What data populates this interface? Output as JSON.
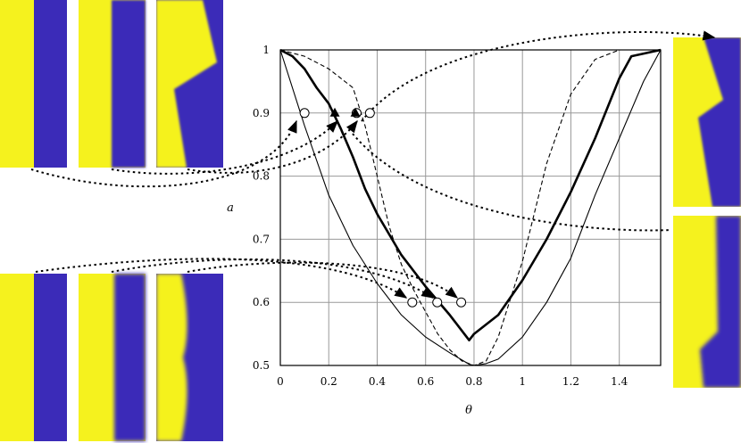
{
  "chart_data": {
    "type": "line",
    "xlabel": "θ",
    "ylabel": "a",
    "xlim": [
      0,
      1.5708
    ],
    "ylim": [
      0.5,
      1.0
    ],
    "grid": true,
    "x_ticks": [
      "0",
      "0.2",
      "0.4",
      "0.6",
      "0.8",
      "1",
      "1.2",
      "1.4"
    ],
    "y_ticks": [
      "0.5",
      "0.6",
      "0.7",
      "0.8",
      "0.9",
      "1"
    ],
    "series": [
      {
        "style": "thin-solid",
        "color": "#000000",
        "points": [
          [
            0,
            1
          ],
          [
            0.1,
            0.88
          ],
          [
            0.2,
            0.77
          ],
          [
            0.3,
            0.69
          ],
          [
            0.4,
            0.63
          ],
          [
            0.5,
            0.58
          ],
          [
            0.6,
            0.545
          ],
          [
            0.7,
            0.52
          ],
          [
            0.78,
            0.502
          ],
          [
            0.8,
            0.5
          ],
          [
            0.85,
            0.503
          ],
          [
            0.9,
            0.51
          ],
          [
            1.0,
            0.545
          ],
          [
            1.1,
            0.6
          ],
          [
            1.2,
            0.67
          ],
          [
            1.3,
            0.77
          ],
          [
            1.4,
            0.86
          ],
          [
            1.5,
            0.95
          ],
          [
            1.5708,
            1
          ]
        ]
      },
      {
        "style": "dashed",
        "color": "#000000",
        "points": [
          [
            0,
            1
          ],
          [
            0.1,
            0.99
          ],
          [
            0.2,
            0.97
          ],
          [
            0.3,
            0.94
          ],
          [
            0.35,
            0.88
          ],
          [
            0.4,
            0.8
          ],
          [
            0.45,
            0.72
          ],
          [
            0.5,
            0.66
          ],
          [
            0.55,
            0.62
          ],
          [
            0.6,
            0.585
          ],
          [
            0.65,
            0.55
          ],
          [
            0.7,
            0.525
          ],
          [
            0.75,
            0.507
          ],
          [
            0.8,
            0.5
          ],
          [
            0.85,
            0.507
          ],
          [
            0.9,
            0.545
          ],
          [
            1.0,
            0.665
          ],
          [
            1.1,
            0.82
          ],
          [
            1.2,
            0.93
          ],
          [
            1.3,
            0.985
          ],
          [
            1.4,
            1.0
          ],
          [
            1.5708,
            1
          ]
        ]
      },
      {
        "style": "thick-solid",
        "color": "#000000",
        "points": [
          [
            0,
            1
          ],
          [
            0.05,
            0.99
          ],
          [
            0.1,
            0.97
          ],
          [
            0.15,
            0.94
          ],
          [
            0.2,
            0.915
          ],
          [
            0.25,
            0.875
          ],
          [
            0.3,
            0.83
          ],
          [
            0.35,
            0.78
          ],
          [
            0.4,
            0.74
          ],
          [
            0.5,
            0.675
          ],
          [
            0.6,
            0.625
          ],
          [
            0.7,
            0.58
          ],
          [
            0.78,
            0.54
          ],
          [
            0.8,
            0.55
          ],
          [
            0.9,
            0.58
          ],
          [
            1.0,
            0.635
          ],
          [
            1.1,
            0.7
          ],
          [
            1.2,
            0.775
          ],
          [
            1.3,
            0.86
          ],
          [
            1.4,
            0.955
          ],
          [
            1.45,
            0.99
          ],
          [
            1.5708,
            1
          ]
        ]
      }
    ],
    "markers": [
      {
        "shape": "circle",
        "x": 0.1,
        "y": 0.9
      },
      {
        "shape": "circle",
        "x": 0.315,
        "y": 0.9
      },
      {
        "shape": "circle",
        "x": 0.37,
        "y": 0.9
      },
      {
        "shape": "triangle",
        "x": 0.225,
        "y": 0.9
      },
      {
        "shape": "triangle",
        "x": 0.31,
        "y": 0.9
      },
      {
        "shape": "circle",
        "x": 0.545,
        "y": 0.6
      },
      {
        "shape": "circle",
        "x": 0.648,
        "y": 0.6
      },
      {
        "shape": "circle",
        "x": 0.747,
        "y": 0.6
      }
    ],
    "inset_images": [
      {
        "description": "field snapshot",
        "boundary": "straight"
      },
      {
        "description": "field snapshot",
        "boundary": "straight"
      },
      {
        "description": "field snapshot",
        "boundary": "kinked-sharp"
      },
      {
        "description": "field snapshot",
        "boundary": "kinked-gentle"
      },
      {
        "description": "field snapshot",
        "boundary": "straight"
      },
      {
        "description": "field snapshot",
        "boundary": "straight-blurred"
      },
      {
        "description": "field snapshot",
        "boundary": "bulged"
      },
      {
        "description": "field snapshot",
        "boundary": "kinked-right"
      }
    ],
    "colors": {
      "yellow": "#F5F21E",
      "blue": "#3B2BB8"
    }
  }
}
